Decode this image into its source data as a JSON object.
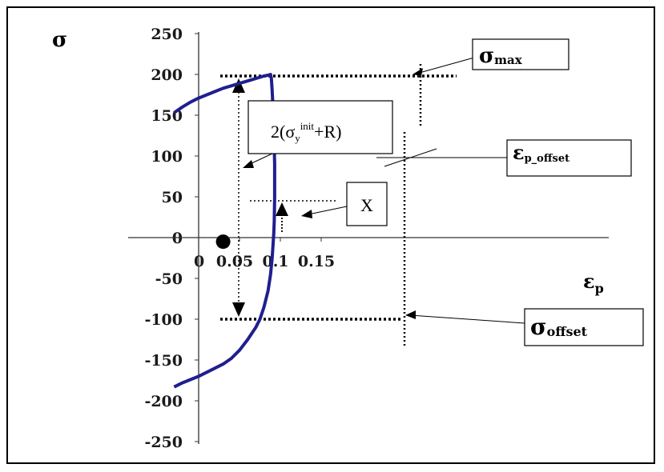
{
  "chart_data": {
    "type": "line",
    "title": "",
    "ylabel": "σ",
    "xlabel_main": "ε",
    "xlabel_sub": "p",
    "xlim": [
      -0.03,
      0.155
    ],
    "ylim": [
      -250,
      250
    ],
    "xticks": [
      0,
      0.05,
      0.1,
      0.15
    ],
    "xtick_labels": [
      "0",
      "0.05",
      "0.1",
      "0.15"
    ],
    "yticks": [
      250,
      200,
      150,
      100,
      50,
      0,
      -50,
      -100,
      -150,
      -200,
      -250
    ],
    "ytick_labels": [
      "250",
      "200",
      "150",
      "100",
      "50",
      "0",
      "-50",
      "-100",
      "-150",
      "-200",
      "-250"
    ],
    "series": [
      {
        "color": "#1f1f8f",
        "x": [
          -0.03,
          -0.02,
          -0.01,
          0.0,
          0.01,
          0.02,
          0.03,
          0.04,
          0.05,
          0.06,
          0.07,
          0.08,
          0.085,
          0.088,
          0.089,
          0.09,
          0.091,
          0.092,
          0.0925,
          0.093,
          0.093,
          0.0925,
          0.092,
          0.091,
          0.09,
          0.088,
          0.085,
          0.08,
          0.075,
          0.07,
          0.06,
          0.05,
          0.04,
          0.03,
          0.02,
          0.01,
          0.0,
          -0.01,
          -0.02,
          -0.03
        ],
        "y": [
          153,
          160,
          166,
          171,
          175,
          179,
          183,
          186,
          189,
          192,
          195,
          198,
          199,
          200,
          195,
          180,
          160,
          130,
          110,
          90,
          50,
          20,
          5,
          -10,
          -25,
          -45,
          -65,
          -85,
          -100,
          -110,
          -125,
          -138,
          -148,
          -155,
          -160,
          -165,
          -170,
          -174,
          -178,
          -183
        ]
      }
    ],
    "marker": {
      "x": 0.03,
      "y": -5,
      "color": "#000000"
    },
    "annotations": [
      {
        "label_main": "σ",
        "label_sub": "max",
        "label_sup": ""
      },
      {
        "label_main": "ε",
        "label_sub": "p_offset",
        "label_sup": ""
      },
      {
        "label_main": "X",
        "label_sub": "",
        "label_sup": ""
      },
      {
        "label_main": "σ",
        "label_sub": "offset",
        "label_sup": ""
      },
      {
        "label_pre": "2(σ",
        "label_sub": "y",
        "label_sup": "init",
        "label_post": "+R)"
      }
    ]
  }
}
